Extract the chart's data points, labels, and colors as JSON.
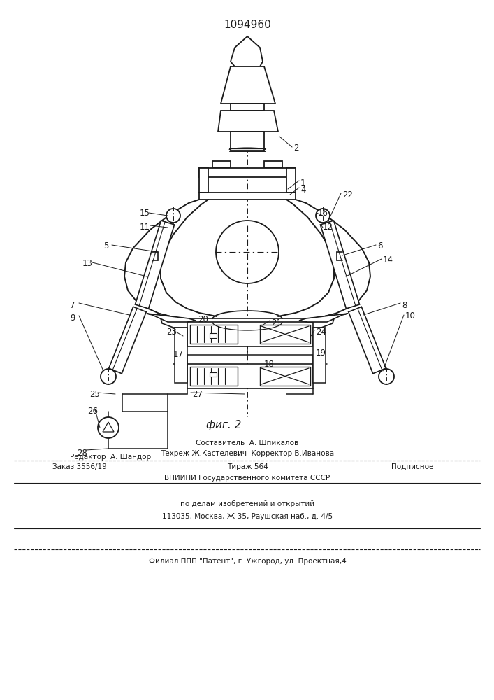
{
  "patent_number": "1094960",
  "fig_label": "фиг. 2",
  "background_color": "#ffffff",
  "line_color": "#1a1a1a",
  "lw": 1.3,
  "bottom_text": {
    "composer": "Составитель  А. Шпикалов",
    "editor_label": "Редактор  А. Шандор",
    "techred": "Техреж Ж.Кастелевич  Корректор В.Иванова",
    "order": "Заказ 3556/19",
    "tirazh": "Тираж 564",
    "podpisnoe": "Подписное",
    "vniip1": "ВНИИПИ Государственного комитета СССР",
    "vniip2": "по делам изобретений и открытий",
    "vniip3": "113035, Москва, Ж-35, Раушская наб., д. 4/5",
    "filial": "Филиал ППП \"Патент\", г. Ужгород, ул. Проектная,4"
  }
}
